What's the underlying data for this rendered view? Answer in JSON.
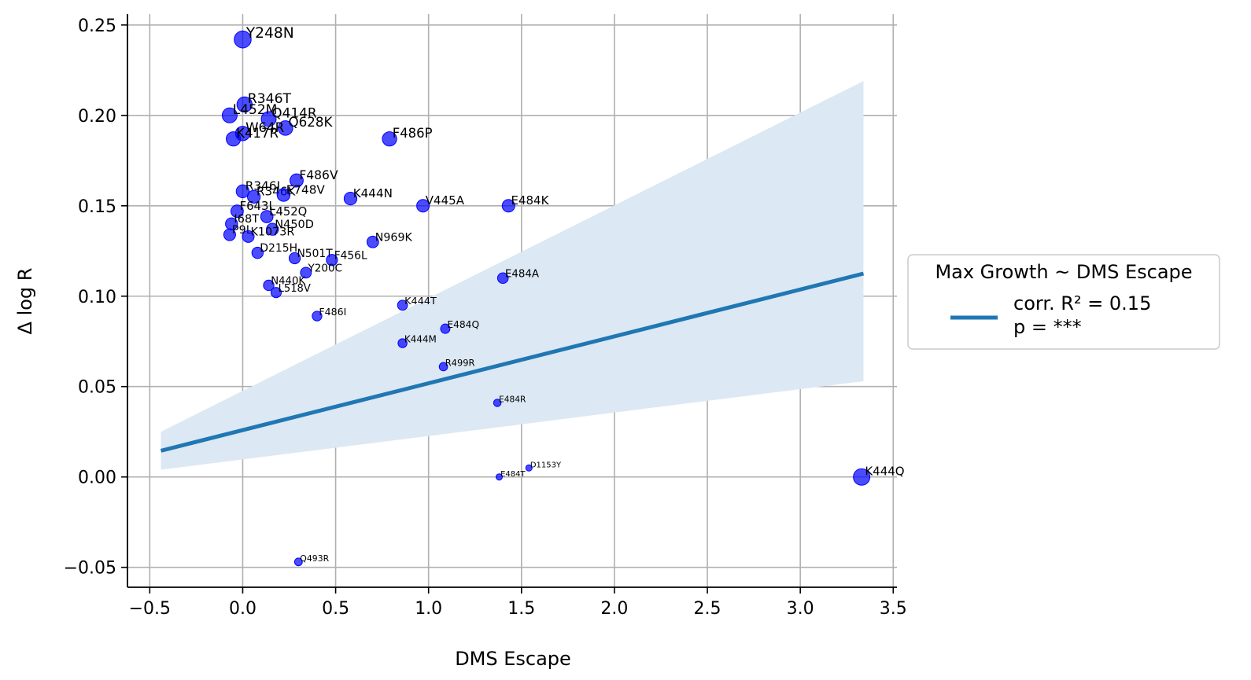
{
  "chart_data": {
    "type": "scatter",
    "xlabel": "DMS Escape",
    "ylabel": "Δ log R",
    "xlim": [
      -0.62,
      3.52
    ],
    "ylim": [
      -0.061,
      0.256
    ],
    "xticks": [
      -0.5,
      0.0,
      0.5,
      1.0,
      1.5,
      2.0,
      2.5,
      3.0,
      3.5
    ],
    "yticks": [
      -0.05,
      0.0,
      0.05,
      0.1,
      0.15,
      0.2,
      0.25
    ],
    "xtick_labels": [
      "−0.5",
      "0.0",
      "0.5",
      "1.0",
      "1.5",
      "2.0",
      "2.5",
      "3.0",
      "3.5"
    ],
    "ytick_labels": [
      "−0.05",
      "0.00",
      "0.05",
      "0.10",
      "0.15",
      "0.20",
      "0.25"
    ],
    "grid": true,
    "point_color": "#0000ff",
    "line_color": "#1f77b4",
    "band_color": "#dce8f3",
    "regression": {
      "x": [
        -0.44,
        3.34
      ],
      "y": [
        0.0145,
        0.1125
      ],
      "band_upper": [
        0.025,
        0.219
      ],
      "band_lower": [
        0.004,
        0.053
      ]
    },
    "legend": {
      "title": "Max Growth ~ DMS Escape",
      "line1": "corr. R² = 0.15",
      "line2": "p = ***",
      "placement": "right"
    },
    "labeled_points": [
      {
        "label": "Y248N",
        "x": 0.0,
        "y": 0.242
      },
      {
        "label": "R346T",
        "x": 0.01,
        "y": 0.206
      },
      {
        "label": "L452M",
        "x": -0.07,
        "y": 0.2
      },
      {
        "label": "Q414R",
        "x": 0.14,
        "y": 0.198
      },
      {
        "label": "Q628K",
        "x": 0.23,
        "y": 0.193
      },
      {
        "label": "W64R",
        "x": 0.0,
        "y": 0.19
      },
      {
        "label": "K417R",
        "x": -0.05,
        "y": 0.187
      },
      {
        "label": "F486P",
        "x": 0.79,
        "y": 0.187
      },
      {
        "label": "F486V",
        "x": 0.29,
        "y": 0.164
      },
      {
        "label": "R346I",
        "x": 0.0,
        "y": 0.158
      },
      {
        "label": "R346K",
        "x": 0.06,
        "y": 0.155
      },
      {
        "label": "E748V",
        "x": 0.22,
        "y": 0.156
      },
      {
        "label": "K444N",
        "x": 0.58,
        "y": 0.154
      },
      {
        "label": "V445A",
        "x": 0.97,
        "y": 0.15
      },
      {
        "label": "E484K",
        "x": 1.43,
        "y": 0.15
      },
      {
        "label": "F643L",
        "x": -0.03,
        "y": 0.147
      },
      {
        "label": "L452Q",
        "x": 0.13,
        "y": 0.144
      },
      {
        "label": "I68T",
        "x": -0.06,
        "y": 0.14
      },
      {
        "label": "N450D",
        "x": 0.16,
        "y": 0.137
      },
      {
        "label": "P9L",
        "x": -0.07,
        "y": 0.134
      },
      {
        "label": "K1073R",
        "x": 0.03,
        "y": 0.133
      },
      {
        "label": "N969K",
        "x": 0.7,
        "y": 0.13
      },
      {
        "label": "D215H",
        "x": 0.08,
        "y": 0.124
      },
      {
        "label": "N501T",
        "x": 0.28,
        "y": 0.121
      },
      {
        "label": "F456L",
        "x": 0.48,
        "y": 0.12
      },
      {
        "label": "Y200C",
        "x": 0.34,
        "y": 0.113
      },
      {
        "label": "E484A",
        "x": 1.4,
        "y": 0.11
      },
      {
        "label": "N440K",
        "x": 0.14,
        "y": 0.106
      },
      {
        "label": "L518V",
        "x": 0.18,
        "y": 0.102
      },
      {
        "label": "K444T",
        "x": 0.86,
        "y": 0.095
      },
      {
        "label": "F486I",
        "x": 0.4,
        "y": 0.089
      },
      {
        "label": "E484Q",
        "x": 1.09,
        "y": 0.082
      },
      {
        "label": "K444M",
        "x": 0.86,
        "y": 0.074
      },
      {
        "label": "R499R",
        "x": 1.08,
        "y": 0.061
      },
      {
        "label": "E484R",
        "x": 1.37,
        "y": 0.041
      },
      {
        "label": "D1153Y",
        "x": 1.54,
        "y": 0.005
      },
      {
        "label": "E484T",
        "x": 1.38,
        "y": 0.0
      },
      {
        "label": "K444Q",
        "x": 3.33,
        "y": 0.0
      },
      {
        "label": "Q493R",
        "x": 0.3,
        "y": -0.047
      }
    ]
  }
}
